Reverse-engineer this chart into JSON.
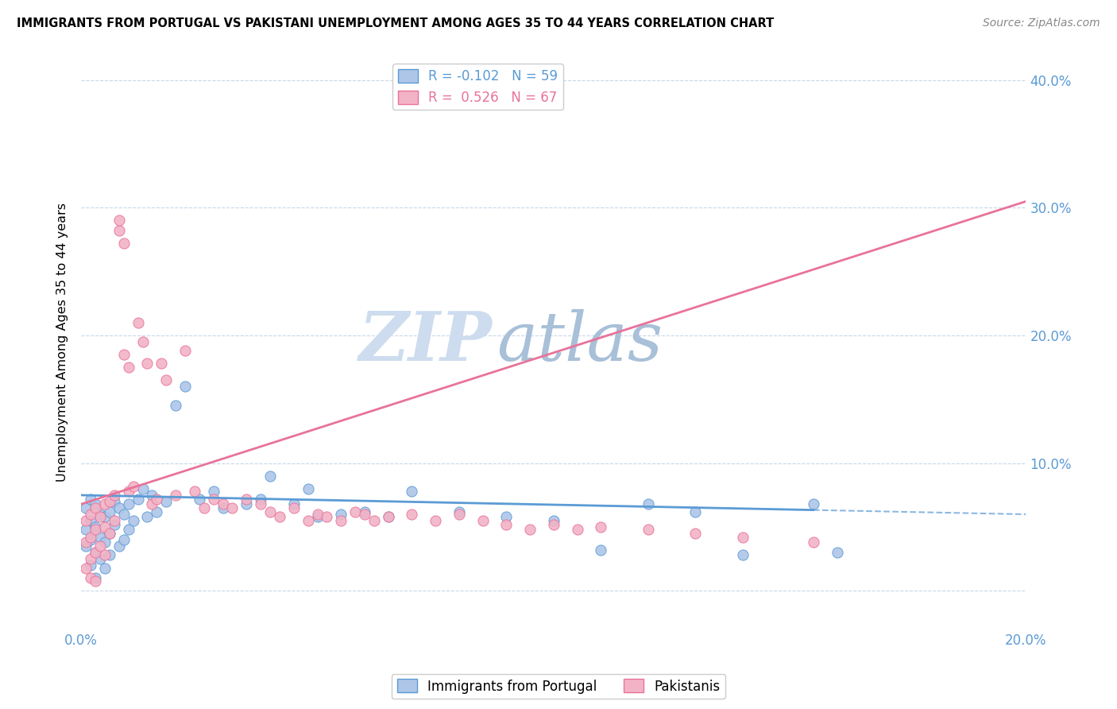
{
  "title": "IMMIGRANTS FROM PORTUGAL VS PAKISTANI UNEMPLOYMENT AMONG AGES 35 TO 44 YEARS CORRELATION CHART",
  "source": "Source: ZipAtlas.com",
  "ylabel": "Unemployment Among Ages 35 to 44 years",
  "xmin": 0.0,
  "xmax": 0.2,
  "ymin": -0.03,
  "ymax": 0.42,
  "xticks": [
    0.0,
    0.04,
    0.08,
    0.12,
    0.16,
    0.2
  ],
  "xtick_labels": [
    "0.0%",
    "",
    "",
    "",
    "",
    "20.0%"
  ],
  "yticks": [
    0.0,
    0.1,
    0.2,
    0.3,
    0.4
  ],
  "ytick_labels": [
    "",
    "10.0%",
    "20.0%",
    "30.0%",
    "40.0%"
  ],
  "color_blue": "#aec6e8",
  "color_pink": "#f2b3c6",
  "line_blue": "#5b9bd5",
  "line_pink": "#e8739a",
  "watermark_zip": "#c5d8ee",
  "watermark_atlas": "#9fb8d8",
  "background_color": "#ffffff",
  "portugal_scatter_x": [
    0.001,
    0.001,
    0.001,
    0.002,
    0.002,
    0.002,
    0.002,
    0.003,
    0.003,
    0.003,
    0.003,
    0.004,
    0.004,
    0.004,
    0.005,
    0.005,
    0.005,
    0.006,
    0.006,
    0.006,
    0.007,
    0.007,
    0.008,
    0.008,
    0.009,
    0.009,
    0.01,
    0.01,
    0.011,
    0.012,
    0.013,
    0.014,
    0.015,
    0.016,
    0.018,
    0.02,
    0.022,
    0.025,
    0.028,
    0.03,
    0.035,
    0.038,
    0.04,
    0.045,
    0.048,
    0.05,
    0.055,
    0.06,
    0.065,
    0.07,
    0.08,
    0.09,
    0.1,
    0.11,
    0.12,
    0.13,
    0.14,
    0.155,
    0.16
  ],
  "portugal_scatter_y": [
    0.065,
    0.048,
    0.035,
    0.072,
    0.055,
    0.04,
    0.02,
    0.068,
    0.05,
    0.03,
    0.01,
    0.06,
    0.042,
    0.025,
    0.058,
    0.038,
    0.018,
    0.062,
    0.045,
    0.028,
    0.07,
    0.052,
    0.065,
    0.035,
    0.06,
    0.04,
    0.068,
    0.048,
    0.055,
    0.072,
    0.08,
    0.058,
    0.075,
    0.062,
    0.07,
    0.145,
    0.16,
    0.072,
    0.078,
    0.065,
    0.068,
    0.072,
    0.09,
    0.068,
    0.08,
    0.058,
    0.06,
    0.062,
    0.058,
    0.078,
    0.062,
    0.058,
    0.055,
    0.032,
    0.068,
    0.062,
    0.028,
    0.068,
    0.03
  ],
  "pakistani_scatter_x": [
    0.001,
    0.001,
    0.001,
    0.002,
    0.002,
    0.002,
    0.002,
    0.003,
    0.003,
    0.003,
    0.003,
    0.004,
    0.004,
    0.005,
    0.005,
    0.005,
    0.006,
    0.006,
    0.007,
    0.007,
    0.008,
    0.008,
    0.009,
    0.009,
    0.01,
    0.01,
    0.011,
    0.012,
    0.013,
    0.014,
    0.015,
    0.016,
    0.017,
    0.018,
    0.02,
    0.022,
    0.024,
    0.026,
    0.028,
    0.03,
    0.032,
    0.035,
    0.038,
    0.04,
    0.042,
    0.045,
    0.048,
    0.05,
    0.052,
    0.055,
    0.058,
    0.06,
    0.062,
    0.065,
    0.07,
    0.075,
    0.08,
    0.085,
    0.09,
    0.095,
    0.1,
    0.105,
    0.11,
    0.12,
    0.13,
    0.14,
    0.155
  ],
  "pakistani_scatter_y": [
    0.055,
    0.038,
    0.018,
    0.06,
    0.042,
    0.025,
    0.01,
    0.065,
    0.048,
    0.03,
    0.008,
    0.058,
    0.035,
    0.068,
    0.05,
    0.028,
    0.07,
    0.045,
    0.075,
    0.055,
    0.282,
    0.29,
    0.272,
    0.185,
    0.175,
    0.078,
    0.082,
    0.21,
    0.195,
    0.178,
    0.068,
    0.072,
    0.178,
    0.165,
    0.075,
    0.188,
    0.078,
    0.065,
    0.072,
    0.068,
    0.065,
    0.072,
    0.068,
    0.062,
    0.058,
    0.065,
    0.055,
    0.06,
    0.058,
    0.055,
    0.062,
    0.06,
    0.055,
    0.058,
    0.06,
    0.055,
    0.06,
    0.055,
    0.052,
    0.048,
    0.052,
    0.048,
    0.05,
    0.048,
    0.045,
    0.042,
    0.038
  ],
  "port_line_x0": 0.0,
  "port_line_x1": 0.2,
  "port_line_y0": 0.075,
  "port_line_y1": 0.06,
  "pak_line_x0": 0.0,
  "pak_line_x1": 0.2,
  "pak_line_y0": 0.068,
  "pak_line_y1": 0.305
}
